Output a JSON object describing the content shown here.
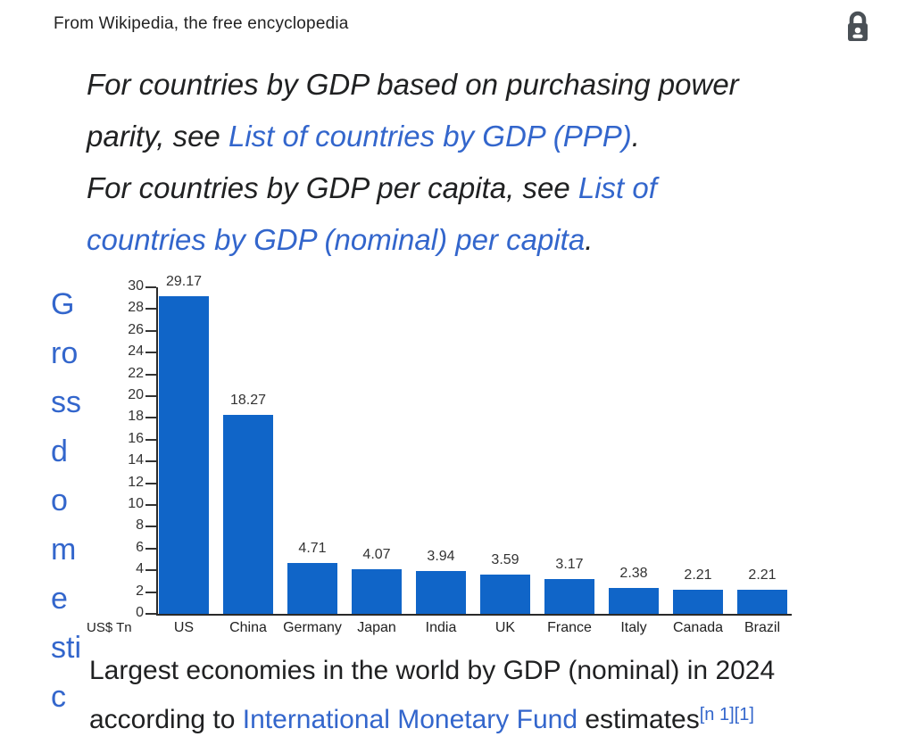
{
  "header": {
    "tagline": "From Wikipedia, the free encyclopedia",
    "lock_icon": "padlock-with-person"
  },
  "colors": {
    "link_blue": "#3366cc",
    "bar_blue": "#1065c8",
    "text_dark": "#202122",
    "lock_gray": "#4a5056"
  },
  "hatnotes": [
    {
      "lines": [
        [
          {
            "t": "For countries by GDP based on purchasing power"
          }
        ],
        [
          {
            "t": "parity, see "
          },
          {
            "t": "List of countries by GDP (PPP)",
            "link": true,
            "name": "list-of-countries-by-gdp-ppp-link"
          },
          {
            "t": "."
          }
        ]
      ]
    },
    {
      "lines": [
        [
          {
            "t": "For countries by GDP per capita, see "
          },
          {
            "t": "List of",
            "link": true,
            "name": "list-of-countries-by-gdp-nominal-per-capita-link"
          }
        ],
        [
          {
            "t": "countries by GDP (nominal) per capita",
            "link": true,
            "name": "list-of-countries-by-gdp-nominal-per-capita-link"
          },
          {
            "t": "."
          }
        ]
      ]
    }
  ],
  "article": {
    "left_column_text": "G\nro\nss\nd\no\nm\ne\nsti\nc",
    "left_column_word": "Gross domestic"
  },
  "chart_data": {
    "type": "bar",
    "title": "",
    "unit_label": "US$ Tn",
    "categories": [
      "US",
      "China",
      "Germany",
      "Japan",
      "India",
      "UK",
      "France",
      "Italy",
      "Canada",
      "Brazil"
    ],
    "values": [
      29.17,
      18.27,
      4.71,
      4.07,
      3.94,
      3.59,
      3.17,
      2.38,
      2.21,
      2.21
    ],
    "value_labels": [
      "29.17",
      "18.27",
      "4.71",
      "4.07",
      "3.94",
      "3.59",
      "3.17",
      "2.38",
      "2.21",
      "2.21"
    ],
    "xlabel": "",
    "ylabel": "US$ Tn",
    "ylim": [
      0,
      30
    ],
    "ytick_step": 2,
    "grid": false,
    "legend": "none",
    "bar_color": "#1065c8"
  },
  "caption": {
    "lines": [
      [
        {
          "t": "Largest economies in the world by GDP (nominal) in 2024"
        }
      ],
      [
        {
          "t": "according to "
        },
        {
          "t": "International Monetary Fund",
          "link": true,
          "name": "international-monetary-fund-link"
        },
        {
          "t": " estimates"
        },
        {
          "t": "[n 1]",
          "link": true,
          "sup": true,
          "name": "note-1-reference"
        },
        {
          "t": "[1]",
          "link": true,
          "sup": true,
          "name": "citation-1-reference"
        }
      ]
    ]
  }
}
